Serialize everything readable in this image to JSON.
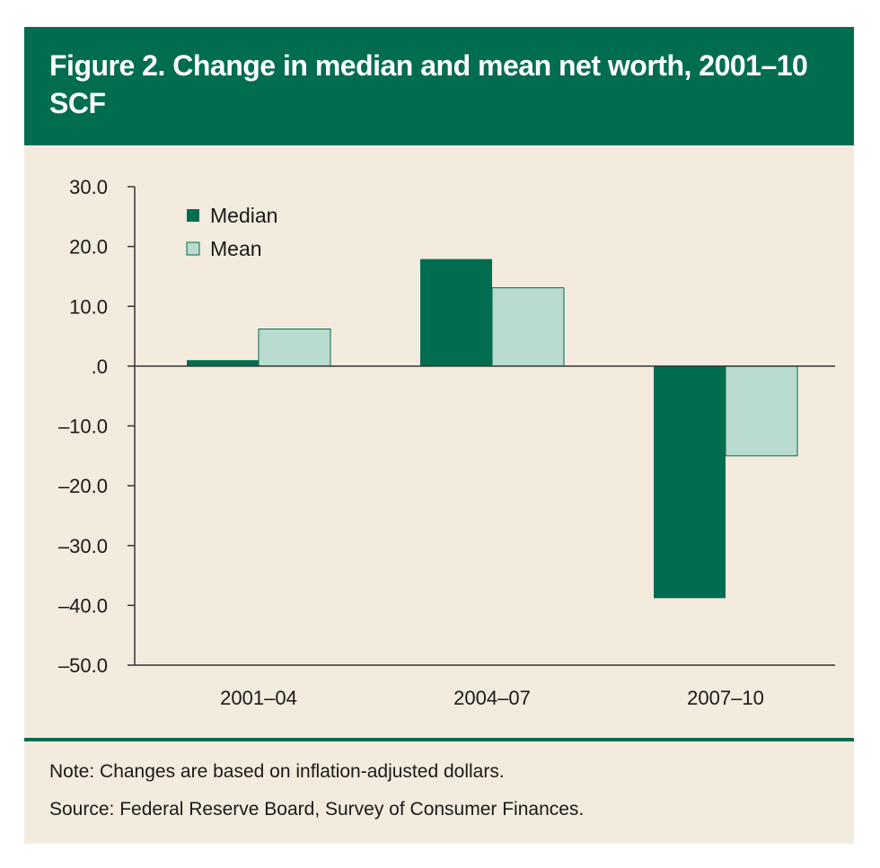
{
  "title": "Figure 2. Change in median and mean net worth, 2001–10 SCF",
  "note": "Note: Changes are based on inflation-adjusted dollars.",
  "source": "Source: Federal Reserve Board, Survey of Consumer Finances.",
  "colors": {
    "header": "#006d51",
    "median": "#006d51",
    "mean": "#b9dbcf",
    "background": "#f3ebdd"
  },
  "chart_data": {
    "type": "bar",
    "categories": [
      "2001–04",
      "2004–07",
      "2007–10"
    ],
    "series": [
      {
        "name": "Median",
        "values": [
          1.0,
          17.9,
          -38.8
        ]
      },
      {
        "name": "Mean",
        "values": [
          6.2,
          13.1,
          -15.0
        ]
      }
    ],
    "ylim": [
      -50,
      30
    ],
    "yticks": [
      30,
      20,
      10,
      0,
      -10,
      -20,
      -30,
      -40,
      -50
    ],
    "ytick_labels": [
      "30.0",
      "20.0",
      "10.0",
      ".0",
      "–10.0",
      "–20.0",
      "–30.0",
      "–40.0",
      "–50.0"
    ],
    "legend_position": "top-left",
    "grid": false
  }
}
